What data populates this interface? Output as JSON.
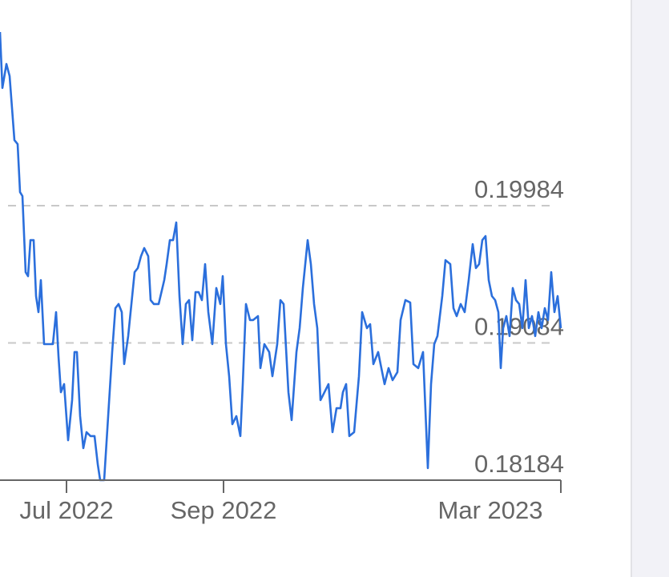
{
  "chart_data": {
    "type": "line",
    "x": [
      0,
      3,
      8,
      12,
      18,
      22,
      25,
      28,
      32,
      35,
      38,
      42,
      45,
      48,
      51,
      55,
      60,
      66,
      70,
      73,
      76,
      80,
      85,
      90,
      93,
      96,
      100,
      104,
      108,
      113,
      118,
      122,
      125,
      130,
      135,
      140,
      144,
      148,
      152,
      155,
      160,
      165,
      168,
      172,
      176,
      180,
      185,
      188,
      192,
      198,
      205,
      208,
      212,
      216,
      220,
      224,
      228,
      232,
      236,
      240,
      244,
      248,
      252,
      256,
      260,
      265,
      270,
      275,
      278,
      282,
      286,
      290,
      295,
      300,
      303,
      307,
      312,
      316,
      322,
      325,
      330,
      336,
      340,
      346,
      350,
      354,
      360,
      364,
      370,
      374,
      378,
      382,
      384,
      388,
      392,
      396,
      400,
      405,
      410,
      415,
      420,
      425,
      428,
      432,
      436,
      442,
      448,
      452,
      458,
      462,
      466,
      472,
      476,
      480,
      485,
      490,
      496,
      500,
      506,
      512,
      516,
      522,
      528,
      534,
      538,
      542,
      546,
      552,
      556,
      562,
      566,
      570,
      575,
      580,
      585,
      590,
      594,
      598,
      602,
      606,
      610,
      614,
      618,
      622,
      625,
      628,
      632,
      636,
      640,
      644,
      648,
      652,
      656,
      660,
      664,
      668,
      672,
      676,
      680,
      684,
      688,
      692,
      696,
      700
    ],
    "series": [
      {
        "color": "#2b6fdc",
        "values": [
          0.21123,
          0.20756,
          0.20913,
          0.20834,
          0.20414,
          0.20388,
          0.20073,
          0.20047,
          0.19548,
          0.19522,
          0.19758,
          0.19758,
          0.19391,
          0.19286,
          0.19496,
          0.19076,
          0.19076,
          0.19076,
          0.19286,
          0.18997,
          0.18761,
          0.18814,
          0.18446,
          0.18709,
          0.19024,
          0.19024,
          0.18604,
          0.18394,
          0.18499,
          0.18473,
          0.18473,
          0.18289,
          0.18184,
          0.18184,
          0.18604,
          0.19024,
          0.19312,
          0.19339,
          0.19286,
          0.18945,
          0.19129,
          0.19391,
          0.19548,
          0.19575,
          0.19653,
          0.19706,
          0.19653,
          0.19365,
          0.19339,
          0.19339,
          0.19496,
          0.19601,
          0.19758,
          0.19758,
          0.19874,
          0.19391,
          0.19076,
          0.19339,
          0.19365,
          0.19102,
          0.19417,
          0.19417,
          0.19365,
          0.19601,
          0.19286,
          0.19076,
          0.19444,
          0.19339,
          0.19522,
          0.19076,
          0.18866,
          0.18551,
          0.18604,
          0.18473,
          0.18814,
          0.19339,
          0.19234,
          0.19234,
          0.1926,
          0.18919,
          0.19076,
          0.19024,
          0.18866,
          0.19076,
          0.19365,
          0.19339,
          0.18761,
          0.18578,
          0.19024,
          0.19181,
          0.19444,
          0.19653,
          0.19758,
          0.19601,
          0.19339,
          0.19181,
          0.18709,
          0.18761,
          0.18814,
          0.18499,
          0.18656,
          0.18656,
          0.18761,
          0.18814,
          0.18473,
          0.18499,
          0.18866,
          0.19286,
          0.19181,
          0.19207,
          0.18945,
          0.19024,
          0.18919,
          0.18814,
          0.18919,
          0.1884,
          0.18892,
          0.19234,
          0.19365,
          0.19349,
          0.18945,
          0.18919,
          0.19024,
          0.18263,
          0.18814,
          0.19076,
          0.19129,
          0.19391,
          0.19627,
          0.19601,
          0.19312,
          0.1926,
          0.19339,
          0.19286,
          0.19496,
          0.19732,
          0.19575,
          0.19601,
          0.19758,
          0.19785,
          0.19496,
          0.19391,
          0.19365,
          0.19286,
          0.18919,
          0.19181,
          0.1926,
          0.19129,
          0.19444,
          0.19365,
          0.19339,
          0.19181,
          0.19496,
          0.19181,
          0.1926,
          0.19129,
          0.19286,
          0.19181,
          0.19312,
          0.19234,
          0.19548,
          0.19286,
          0.19391,
          0.19181
        ]
      }
    ],
    "xlim": [
      0,
      700
    ],
    "xticks": [
      {
        "value": 83,
        "label": "Jul 2022"
      },
      {
        "value": 279,
        "label": "Sep 2022"
      },
      {
        "value": 700,
        "label": "Mar 2023"
      }
    ],
    "ylim": [
      0.18184,
      0.21333
    ],
    "yticks": [
      0.18184,
      0.19084,
      0.19984
    ],
    "grid": true
  }
}
